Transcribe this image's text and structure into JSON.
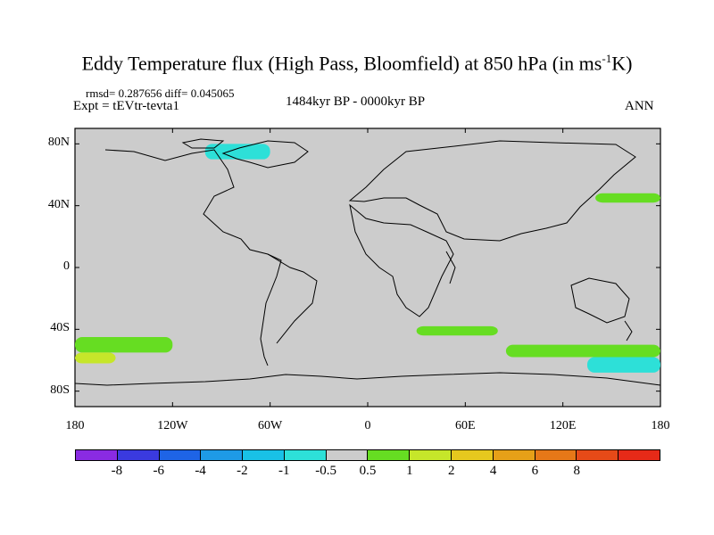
{
  "title": "Eddy Temperature flux (High Pass, Bloomfield) at 850 hPa (in ms",
  "title_sup": "-1",
  "title_end": "K)",
  "stats_text": "rmsd= 0.287656 diff= 0.045065",
  "experiment": "Expt = tEVtr-tevta1",
  "period": "1484kyr BP - 0000kyr BP",
  "season": "ANN",
  "lat_labels": [
    "80N",
    "40N",
    "0",
    "40S",
    "80S"
  ],
  "lon_labels": [
    "180",
    "120W",
    "60W",
    "0",
    "60E",
    "120E",
    "180"
  ],
  "colorbar": {
    "colors": [
      "#8a2be2",
      "#3a3adf",
      "#1e64e6",
      "#1e9ae6",
      "#19c1e6",
      "#2de0d8",
      "#cccccc",
      "#66dd22",
      "#c6e62a",
      "#e6c81e",
      "#e6a018",
      "#e67818",
      "#e64a18",
      "#e62a18"
    ],
    "labels": [
      "-8",
      "-6",
      "-4",
      "-2",
      "-1",
      "-0.5",
      "0.5",
      "1",
      "2",
      "4",
      "6",
      "8"
    ]
  },
  "anomaly_regions": [
    {
      "level": "-1",
      "lon": [
        135,
        180
      ],
      "lat": [
        -68,
        -58
      ]
    },
    {
      "level": "0.5",
      "lon": [
        -180,
        -120
      ],
      "lat": [
        -55,
        -45
      ]
    },
    {
      "level": "1",
      "lon": [
        -180,
        -155
      ],
      "lat": [
        -62,
        -55
      ]
    },
    {
      "level": "0.5",
      "lon": [
        30,
        80
      ],
      "lat": [
        -44,
        -38
      ]
    },
    {
      "level": "0.5",
      "lon": [
        85,
        180
      ],
      "lat": [
        -58,
        -50
      ]
    },
    {
      "level": "0.5",
      "lon": [
        140,
        180
      ],
      "lat": [
        42,
        48
      ]
    },
    {
      "level": "-1",
      "lon": [
        -100,
        -60
      ],
      "lat": [
        70,
        80
      ]
    }
  ]
}
